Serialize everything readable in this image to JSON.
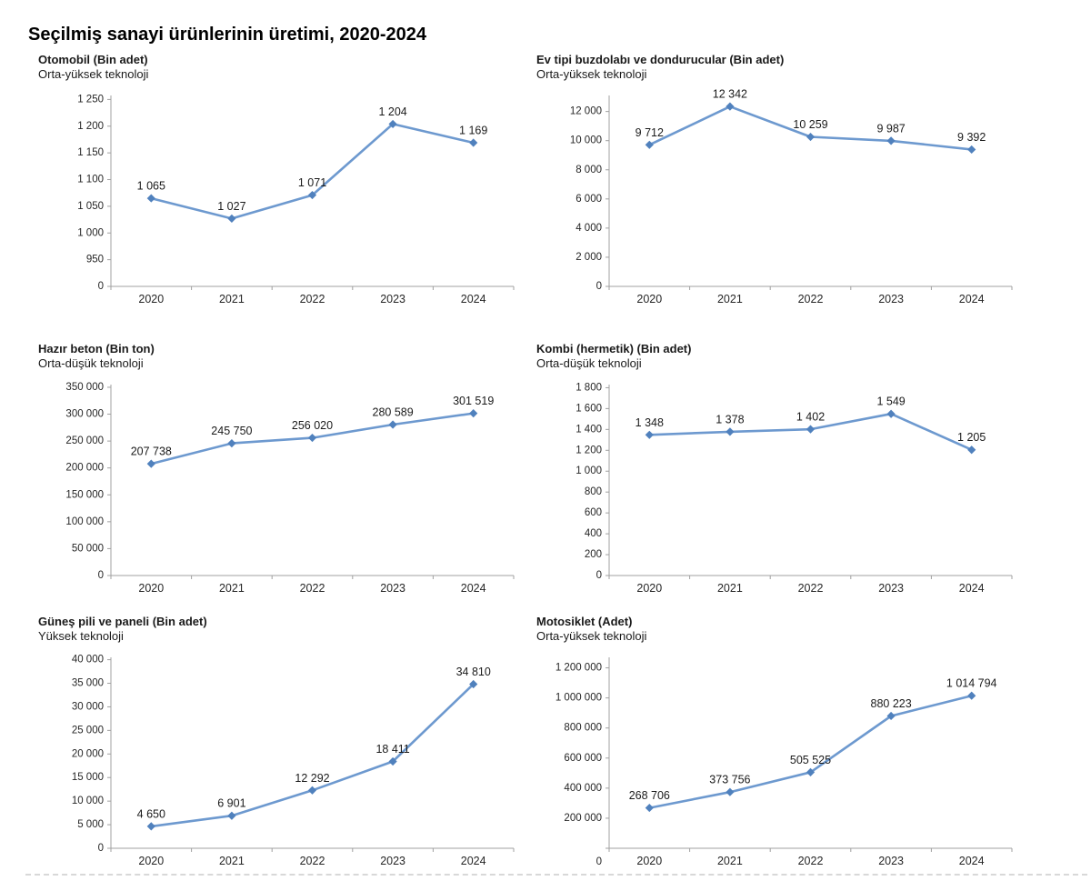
{
  "page": {
    "title": "Seçilmiş sanayi ürünlerinin üretimi, 2020-2024"
  },
  "colors": {
    "line": "#6d99cf",
    "marker": "#5081bd",
    "axis": "#a0a0a0",
    "tick_text": "#262626",
    "label_text": "#1a1a1a"
  },
  "chart_data": [
    {
      "type": "line",
      "title": "Otomobil (Bin adet)",
      "subtitle": "Orta-yüksek teknoloji",
      "categories": [
        "2020",
        "2021",
        "2022",
        "2023",
        "2024"
      ],
      "values": [
        1065,
        1027,
        1071,
        1204,
        1169
      ],
      "point_labels": [
        "1 065",
        "1 027",
        "1 071",
        "1 204",
        "1 169"
      ],
      "yticks": {
        "values": [
          0,
          950,
          1000,
          1050,
          1100,
          1150,
          1200,
          1250
        ],
        "labels": [
          "0",
          "950",
          "1 000",
          "1 050",
          "1 100",
          "1 150",
          "1 200",
          "1 250"
        ]
      },
      "axis_break_after_zero": true,
      "top_pad_ticks": 0.15,
      "zero_label_low": false,
      "grid": false,
      "legend": null
    },
    {
      "type": "line",
      "title": "Ev tipi buzdolabı ve dondurucular (Bin adet)",
      "subtitle": "Orta-yüksek teknoloji",
      "categories": [
        "2020",
        "2021",
        "2022",
        "2023",
        "2024"
      ],
      "values": [
        9712,
        12342,
        10259,
        9987,
        9392
      ],
      "point_labels": [
        "9 712",
        "12 342",
        "10 259",
        "9 987",
        "9 392"
      ],
      "yticks": {
        "values": [
          0,
          2000,
          4000,
          6000,
          8000,
          10000,
          12000
        ],
        "labels": [
          "0",
          "2 000",
          "4 000",
          "6 000",
          "8 000",
          "10 000",
          "12 000"
        ]
      },
      "axis_break_after_zero": false,
      "top_pad_ticks": 0.55,
      "zero_label_low": false,
      "grid": false,
      "legend": null
    },
    {
      "type": "line",
      "title": "Hazır beton (Bin ton)",
      "subtitle": "Orta-düşük teknoloji",
      "categories": [
        "2020",
        "2021",
        "2022",
        "2023",
        "2024"
      ],
      "values": [
        207738,
        245750,
        256020,
        280589,
        301519
      ],
      "point_labels": [
        "207 738",
        "245 750",
        "256 020",
        "280 589",
        "301 519"
      ],
      "yticks": {
        "values": [
          0,
          50000,
          100000,
          150000,
          200000,
          250000,
          300000,
          350000
        ],
        "labels": [
          "0",
          "50 000",
          "100 000",
          "150 000",
          "200 000",
          "250 000",
          "300 000",
          "350 000"
        ]
      },
      "axis_break_after_zero": false,
      "top_pad_ticks": 0.1,
      "zero_label_low": false,
      "grid": false,
      "legend": null
    },
    {
      "type": "line",
      "title": "Kombi (hermetik) (Bin adet)",
      "subtitle": "Orta-düşük teknoloji",
      "categories": [
        "2020",
        "2021",
        "2022",
        "2023",
        "2024"
      ],
      "values": [
        1348,
        1378,
        1402,
        1549,
        1205
      ],
      "point_labels": [
        "1 348",
        "1 378",
        "1 402",
        "1 549",
        "1 205"
      ],
      "yticks": {
        "values": [
          0,
          200,
          400,
          600,
          800,
          1000,
          1200,
          1400,
          1600,
          1800
        ],
        "labels": [
          "0",
          "200",
          "400",
          "600",
          "800",
          "1 000",
          "1 200",
          "1 400",
          "1 600",
          "1 800"
        ]
      },
      "axis_break_after_zero": false,
      "top_pad_ticks": 0.15,
      "zero_label_low": false,
      "grid": false,
      "legend": null
    },
    {
      "type": "line",
      "title": "Güneş pili ve paneli (Bin adet)",
      "subtitle": "Yüksek teknoloji",
      "categories": [
        "2020",
        "2021",
        "2022",
        "2023",
        "2024"
      ],
      "values": [
        4650,
        6901,
        12292,
        18411,
        34810
      ],
      "point_labels": [
        "4 650",
        "6 901",
        "12 292",
        "18 411",
        "34 810"
      ],
      "yticks": {
        "values": [
          0,
          5000,
          10000,
          15000,
          20000,
          25000,
          30000,
          35000,
          40000
        ],
        "labels": [
          "0",
          "5 000",
          "10 000",
          "15 000",
          "20 000",
          "25 000",
          "30 000",
          "35 000",
          "40 000"
        ]
      },
      "axis_break_after_zero": false,
      "top_pad_ticks": 0.1,
      "zero_label_low": false,
      "grid": false,
      "legend": null
    },
    {
      "type": "line",
      "title": "Motosiklet (Adet)",
      "subtitle": "Orta-yüksek teknoloji",
      "categories": [
        "2020",
        "2021",
        "2022",
        "2023",
        "2024"
      ],
      "values": [
        268706,
        373756,
        505525,
        880223,
        1014794
      ],
      "point_labels": [
        "268 706",
        "373 756",
        "505 525",
        "880 223",
        "1 014 794"
      ],
      "yticks": {
        "values": [
          0,
          200000,
          400000,
          600000,
          800000,
          1000000,
          1200000
        ],
        "labels": [
          "0",
          "200 000",
          "400 000",
          "600 000",
          "800 000",
          "1 000 000",
          "1 200 000"
        ]
      },
      "axis_break_after_zero": false,
      "top_pad_ticks": 0.35,
      "zero_label_low": true,
      "grid": false,
      "legend": null
    }
  ]
}
